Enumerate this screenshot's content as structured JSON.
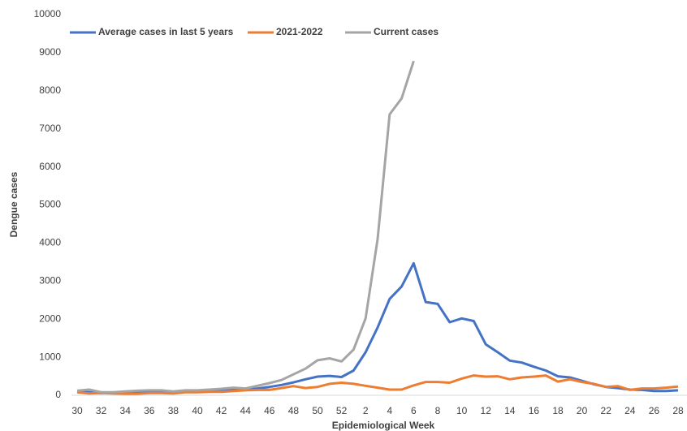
{
  "chart_data": {
    "type": "line",
    "x_label": "Epidemiological Week",
    "y_label": "Dengue cases",
    "categories": [
      "30",
      null,
      "32",
      null,
      "34",
      null,
      "36",
      null,
      "38",
      null,
      "40",
      null,
      "42",
      null,
      "44",
      null,
      "46",
      null,
      "48",
      null,
      "50",
      null,
      "52",
      null,
      "2",
      null,
      "4",
      null,
      "6",
      null,
      "8",
      null,
      "10",
      null,
      "12",
      null,
      "14",
      null,
      "16",
      null,
      "18",
      null,
      "20",
      null,
      "22",
      null,
      "24",
      null,
      "26",
      null,
      "28"
    ],
    "series": [
      {
        "name": "Average cases in last 5 years",
        "color": "#4472c4",
        "values": [
          100,
          80,
          60,
          70,
          70,
          80,
          90,
          90,
          80,
          100,
          110,
          120,
          130,
          140,
          150,
          180,
          220,
          270,
          340,
          420,
          490,
          510,
          480,
          650,
          1130,
          1780,
          2530,
          2860,
          3470,
          2450,
          2400,
          1920,
          2020,
          1950,
          1340,
          1130,
          910,
          860,
          750,
          650,
          500,
          470,
          380,
          290,
          220,
          190,
          150,
          140,
          110,
          110,
          130
        ]
      },
      {
        "name": "2021-2022",
        "color": "#ed7d31",
        "values": [
          80,
          50,
          60,
          50,
          40,
          40,
          60,
          60,
          50,
          80,
          80,
          90,
          90,
          110,
          130,
          140,
          140,
          190,
          240,
          190,
          220,
          300,
          330,
          300,
          250,
          200,
          150,
          150,
          260,
          350,
          350,
          330,
          440,
          520,
          490,
          500,
          420,
          470,
          490,
          520,
          360,
          420,
          350,
          300,
          220,
          240,
          140,
          180,
          180,
          200,
          230
        ]
      },
      {
        "name": "Current cases",
        "color": "#a5a5a5",
        "values": [
          120,
          150,
          80,
          80,
          100,
          120,
          130,
          130,
          100,
          130,
          130,
          150,
          170,
          200,
          180,
          250,
          320,
          400,
          550,
          700,
          920,
          970,
          890,
          1200,
          2020,
          4100,
          7380,
          7800,
          8780,
          null,
          null,
          null,
          null,
          null,
          null,
          null,
          null,
          null,
          null,
          null,
          null,
          null,
          null,
          null,
          null,
          null,
          null,
          null,
          null,
          null,
          null
        ]
      }
    ],
    "ylim": [
      0,
      10000
    ],
    "yticks": [
      0,
      1000,
      2000,
      3000,
      4000,
      5000,
      6000,
      7000,
      8000,
      9000,
      10000
    ],
    "grid": false,
    "legend": "top-left"
  }
}
